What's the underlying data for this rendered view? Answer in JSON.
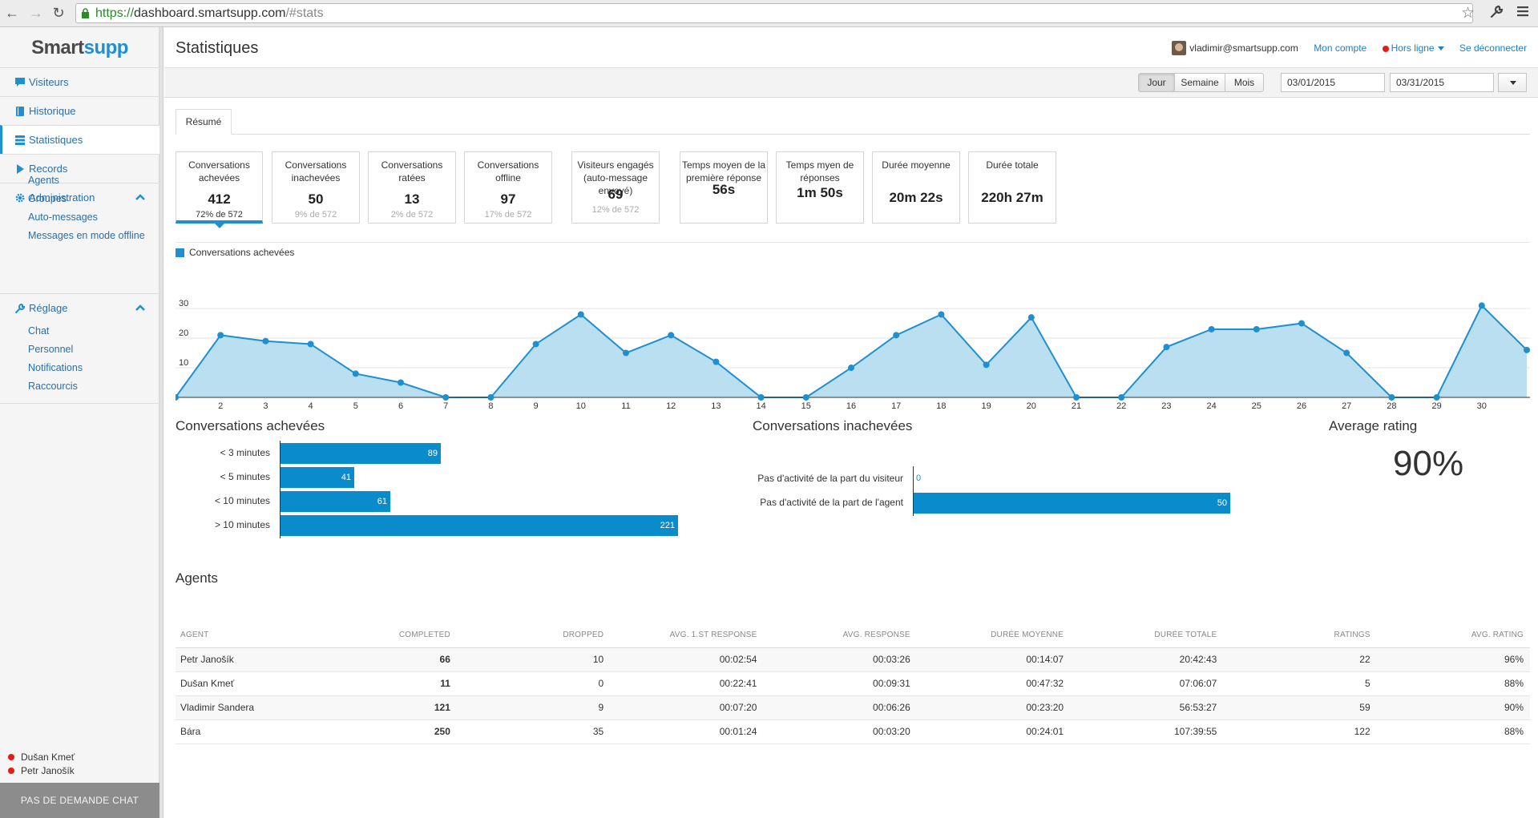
{
  "browser": {
    "url_scheme": "https://",
    "url_host": "dashboard.smartsupp.com",
    "url_path": "/#stats"
  },
  "sidebar": {
    "logo_a": "Smart",
    "logo_b": "supp",
    "items": [
      {
        "label": "Visiteurs",
        "icon": "chat-icon"
      },
      {
        "label": "Historique",
        "icon": "book-icon"
      },
      {
        "label": "Statistiques",
        "icon": "list-icon"
      },
      {
        "label": "Records",
        "icon": "play-icon"
      },
      {
        "label": "Administration",
        "icon": "gear-icon"
      },
      {
        "label": "Réglage",
        "icon": "wrench-icon"
      }
    ],
    "admin_sub": [
      "Agents",
      "Groupes",
      "Auto-messages",
      "Messages en mode offline"
    ],
    "settings_sub": [
      "Chat",
      "Personnel",
      "Notifications",
      "Raccourcis"
    ],
    "online_users": [
      "Dušan Kmeť",
      "Petr Janošík"
    ],
    "chat_button": "PAS DE DEMANDE CHAT",
    "status_color": "#e21b1b"
  },
  "header": {
    "title": "Statistiques",
    "user_email": "vladimir@smartsupp.com",
    "account_link": "Mon compte",
    "status": "Hors ligne",
    "logout": "Se déconnecter"
  },
  "toolbar": {
    "ranges": [
      "Jour",
      "Semaine",
      "Mois"
    ],
    "active_range": "Jour",
    "date_from": "03/01/2015",
    "date_to": "03/31/2015"
  },
  "tabs": {
    "summary": "Résumé"
  },
  "cards": [
    {
      "label": "Conversations achevées",
      "value": "412",
      "sub": "72% de 572"
    },
    {
      "label": "Conversations inachevées",
      "value": "50",
      "sub": "9% de 572"
    },
    {
      "label": "Conversations ratées",
      "value": "13",
      "sub": "2% de 572"
    },
    {
      "label": "Conversations offline",
      "value": "97",
      "sub": "17% de 572"
    },
    {
      "label": "Visiteurs engagés (auto-message envoyé)",
      "value": "69",
      "sub": "12% de 572"
    },
    {
      "label": "Temps moyen de la première réponse",
      "value": "56s"
    },
    {
      "label": "Temps myen de réponses",
      "value": "1m 50s"
    },
    {
      "label": "Durée moyenne",
      "value": "20m 22s"
    },
    {
      "label": "Durée totale",
      "value": "220h 27m"
    }
  ],
  "chart_data": [
    {
      "type": "area",
      "series": [
        {
          "name": "Conversations achevées",
          "values": [
            0,
            21,
            19,
            18,
            8,
            5,
            0,
            0,
            18,
            28,
            15,
            21,
            12,
            0,
            0,
            10,
            21,
            28,
            11,
            27,
            0,
            0,
            17,
            23,
            23,
            25,
            15,
            0,
            0,
            31,
            16
          ]
        }
      ],
      "x": [
        1,
        2,
        3,
        4,
        5,
        6,
        7,
        8,
        9,
        10,
        11,
        12,
        13,
        14,
        15,
        16,
        17,
        18,
        19,
        20,
        21,
        22,
        23,
        24,
        25,
        26,
        27,
        28,
        29,
        30,
        31
      ],
      "x_tick_labels": [
        "2",
        "3",
        "4",
        "5",
        "6",
        "7",
        "8",
        "9",
        "10",
        "11",
        "12",
        "13",
        "14",
        "15",
        "16",
        "17",
        "18",
        "19",
        "20",
        "21",
        "22",
        "23",
        "24",
        "25",
        "26",
        "27",
        "28",
        "29",
        "30"
      ],
      "y_ticks": [
        "10",
        "20",
        "30"
      ],
      "ylim": [
        0,
        33
      ],
      "grid": true,
      "color": "#1e8fd1",
      "fill": "#b3dcee"
    },
    {
      "type": "bar",
      "orientation": "horizontal",
      "title": "Conversations achevées",
      "categories": [
        "< 3 minutes",
        "< 5 minutes",
        "< 10 minutes",
        "> 10 minutes"
      ],
      "values": [
        89,
        41,
        61,
        221
      ],
      "xlim": [
        0,
        221
      ]
    },
    {
      "type": "bar",
      "orientation": "horizontal",
      "title": "Conversations inachevées",
      "categories": [
        "Pas d'activité de la part du visiteur",
        "Pas d'activité de la part de l'agent"
      ],
      "values": [
        0,
        50
      ],
      "xlim": [
        0,
        50
      ]
    }
  ],
  "rating": {
    "title": "Average rating",
    "value": "90%"
  },
  "agents": {
    "title": "Agents",
    "columns": [
      "Agent",
      "Completed",
      "Dropped",
      "Avg. 1.st response",
      "Avg. response",
      "Durée moyenne",
      "Durée totale",
      "Ratings",
      "Avg. rating"
    ],
    "rows": [
      [
        "Petr Janošík",
        "66",
        "10",
        "00:02:54",
        "00:03:26",
        "00:14:07",
        "20:42:43",
        "22",
        "96%"
      ],
      [
        "Dušan Kmeť",
        "11",
        "0",
        "00:22:41",
        "00:09:31",
        "00:47:32",
        "07:06:07",
        "5",
        "88%"
      ],
      [
        "Vladimir Sandera",
        "121",
        "9",
        "00:07:20",
        "00:06:26",
        "00:23:20",
        "56:53:27",
        "59",
        "90%"
      ],
      [
        "Bára",
        "250",
        "35",
        "00:01:24",
        "00:03:20",
        "00:24:01",
        "107:39:55",
        "122",
        "88%"
      ]
    ]
  }
}
